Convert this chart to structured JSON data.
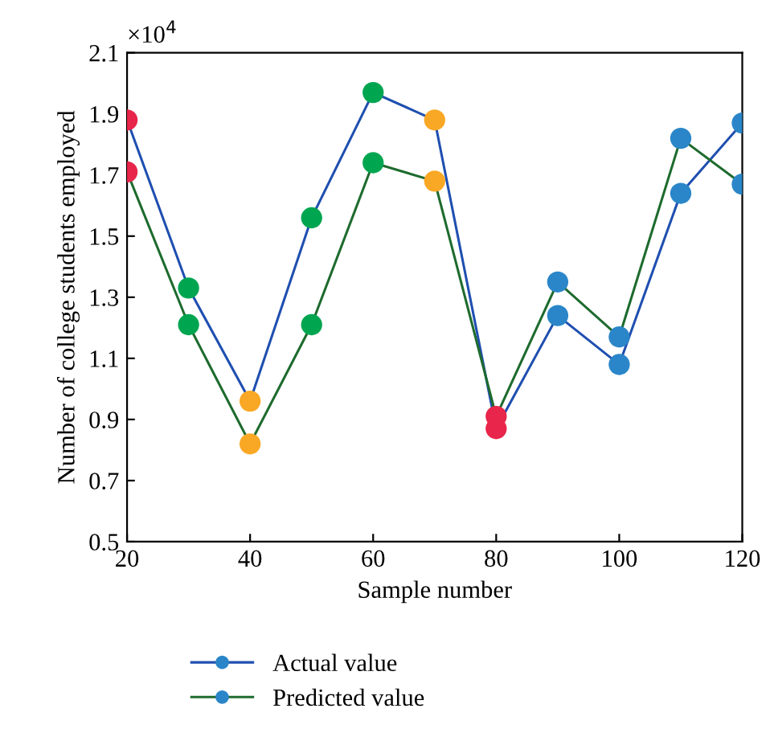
{
  "chart_data": {
    "type": "line",
    "xlabel": "Sample number",
    "ylabel": "Number of college students employed",
    "annotations": [
      "×10$^{4}$"
    ],
    "x": [
      20,
      30,
      40,
      50,
      60,
      70,
      80,
      90,
      100,
      110,
      120
    ],
    "series": [
      {
        "name": "Actual value",
        "color": "#1f4fb0",
        "values": [
          1.88,
          1.33,
          0.96,
          1.56,
          1.97,
          1.88,
          0.87,
          1.24,
          1.08,
          1.64,
          1.87
        ],
        "colors": [
          "#e8254a",
          "#00a550",
          "#f9a825",
          "#00a550",
          "#00a550",
          "#f9a825",
          "#e8254a",
          "#2a86c8",
          "#2a86c8",
          "#2a86c8",
          "#2a86c8"
        ]
      },
      {
        "name": "Predicted value",
        "color": "#1e6b2e",
        "values": [
          1.71,
          1.21,
          0.82,
          1.21,
          1.74,
          1.68,
          0.91,
          1.35,
          1.17,
          1.82,
          1.67
        ],
        "colors": [
          "#e8254a",
          "#00a550",
          "#f9a825",
          "#00a550",
          "#00a550",
          "#f9a825",
          "#e8254a",
          "#2a86c8",
          "#2a86c8",
          "#2a86c8",
          "#2a86c8"
        ]
      }
    ],
    "xlim": [
      20,
      120
    ],
    "xticks": [
      20,
      40,
      60,
      80,
      100,
      120
    ],
    "ylim": [
      0.5,
      2.1
    ],
    "yticks": [
      {
        "value": 0.5,
        "label": "0.5"
      },
      {
        "value": 0.7,
        "label": "0.7"
      },
      {
        "value": 0.9,
        "label": "0.9"
      },
      {
        "value": 1.1,
        "label": "1.1"
      },
      {
        "value": 1.3,
        "label": "1.3"
      },
      {
        "value": 1.5,
        "label": "1.5"
      },
      {
        "value": 1.7,
        "label": "1.7"
      },
      {
        "value": 1.9,
        "label": "1.9"
      },
      {
        "value": 2.1,
        "label": "2.1"
      }
    ],
    "grid": false,
    "legend": "bottom",
    "marker": "circle",
    "line_style": "solid"
  }
}
